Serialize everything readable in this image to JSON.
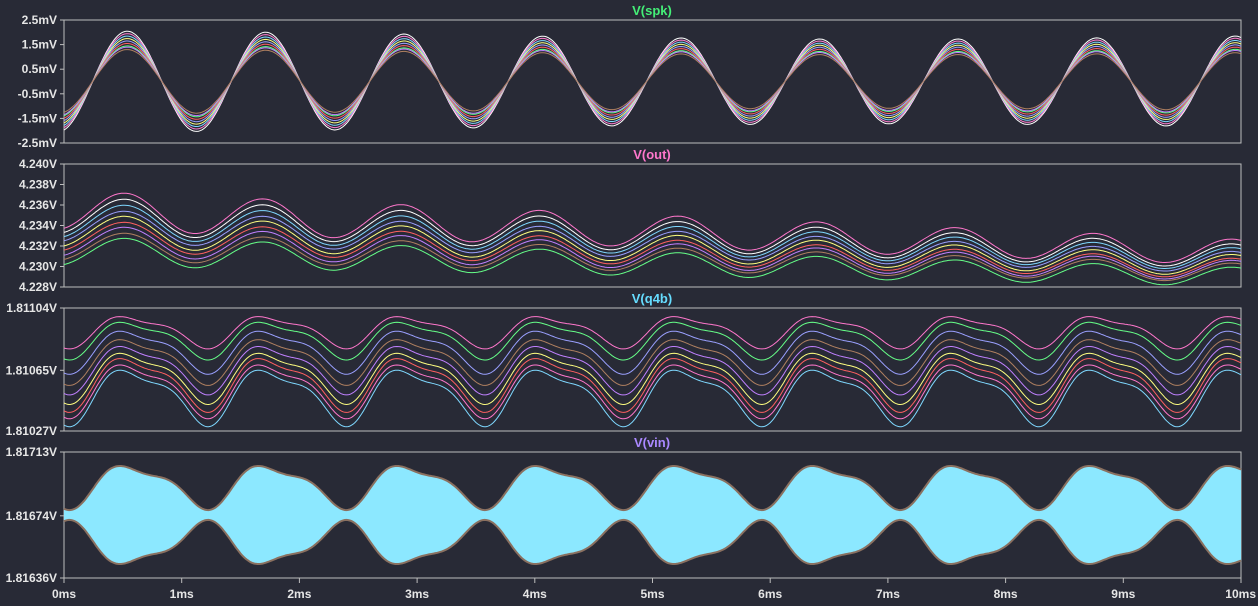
{
  "window": {
    "background": "#282a36",
    "grid": false
  },
  "chart_data": [
    {
      "type": "line",
      "title": "V(spk)",
      "title_color": "#44ee77",
      "y_tick_labels": [
        "2.5mV",
        "1.5mV",
        "0.5mV",
        "-0.5mV",
        "-1.5mV",
        "-2.5mV"
      ],
      "y_ticks": [
        2.5,
        1.5,
        0.5,
        -0.5,
        -1.5,
        -2.5
      ],
      "ylim": [
        -2.5,
        2.5
      ],
      "xlim": [
        0,
        10
      ],
      "frequency_khz": 0.85,
      "series_description": "family of stepped-parameter traces",
      "series_count": 9,
      "series": [
        {
          "color": "#ffffff",
          "amplitude": 2.05,
          "offset": 0
        },
        {
          "color": "#ff7fd0",
          "amplitude": 1.95,
          "offset": 0
        },
        {
          "color": "#7fd8ff",
          "amplitude": 1.85,
          "offset": 0
        },
        {
          "color": "#ffff80",
          "amplitude": 1.75,
          "offset": 0
        },
        {
          "color": "#9aa0ff",
          "amplitude": 1.65,
          "offset": 0
        },
        {
          "color": "#ff6060",
          "amplitude": 1.55,
          "offset": 0
        },
        {
          "color": "#66ff88",
          "amplitude": 1.45,
          "offset": 0
        },
        {
          "color": "#c080ff",
          "amplitude": 1.4,
          "offset": 0
        },
        {
          "color": "#b08060",
          "amplitude": 1.3,
          "offset": 0
        }
      ]
    },
    {
      "type": "line",
      "title": "V(out)",
      "title_color": "#ff77cc",
      "y_tick_labels": [
        "4.240V",
        "4.238V",
        "4.236V",
        "4.234V",
        "4.232V",
        "4.230V",
        "4.228V"
      ],
      "y_ticks": [
        4.24,
        4.238,
        4.236,
        4.234,
        4.232,
        4.23,
        4.228
      ],
      "ylim": [
        4.228,
        4.24
      ],
      "xlim": [
        0,
        10
      ],
      "frequency_khz": 0.85,
      "series": [
        {
          "color": "#ff77cc",
          "start": 4.2355,
          "end": 4.2314,
          "amplitude": 0.0019
        },
        {
          "color": "#ffffff",
          "start": 4.235,
          "end": 4.231,
          "amplitude": 0.0018
        },
        {
          "color": "#7fd8ff",
          "start": 4.2345,
          "end": 4.2307,
          "amplitude": 0.0017
        },
        {
          "color": "#9aa0ff",
          "start": 4.234,
          "end": 4.2304,
          "amplitude": 0.0016
        },
        {
          "color": "#ffff80",
          "start": 4.2335,
          "end": 4.2301,
          "amplitude": 0.0016
        },
        {
          "color": "#ff6060",
          "start": 4.233,
          "end": 4.2298,
          "amplitude": 0.0015
        },
        {
          "color": "#c080ff",
          "start": 4.2325,
          "end": 4.2296,
          "amplitude": 0.0015
        },
        {
          "color": "#b08060",
          "start": 4.232,
          "end": 4.2294,
          "amplitude": 0.0014
        },
        {
          "color": "#66ff88",
          "start": 4.2315,
          "end": 4.229,
          "amplitude": 0.0014
        }
      ]
    },
    {
      "type": "line",
      "title": "V(q4b)",
      "title_color": "#66ddff",
      "y_tick_labels": [
        "1.81104V",
        "1.81065V",
        "1.81027V"
      ],
      "y_ticks": [
        1.81104,
        1.81065,
        1.81027
      ],
      "ylim": [
        1.81027,
        1.81104
      ],
      "xlim": [
        0,
        10
      ],
      "frequency_khz": 0.85,
      "series": [
        {
          "color": "#ff77cc",
          "center": 1.8109,
          "amplitude": 0.00012
        },
        {
          "color": "#66ff88",
          "center": 1.81085,
          "amplitude": 0.00014
        },
        {
          "color": "#9aa0ff",
          "center": 1.81078,
          "amplitude": 0.00016
        },
        {
          "color": "#b08060",
          "center": 1.81072,
          "amplitude": 0.00017
        },
        {
          "color": "#c080ff",
          "center": 1.81067,
          "amplitude": 0.00018
        },
        {
          "color": "#ffff80",
          "center": 1.81062,
          "amplitude": 0.00019
        },
        {
          "color": "#ff6060",
          "center": 1.81058,
          "amplitude": 0.0002
        },
        {
          "color": "#ff77cc",
          "center": 1.81054,
          "amplitude": 0.0002
        },
        {
          "color": "#7fd8ff",
          "center": 1.8105,
          "amplitude": 0.00021
        }
      ]
    },
    {
      "type": "area",
      "title": "V(vin)",
      "title_color": "#aa88ff",
      "y_tick_labels": [
        "1.81713V",
        "1.81674V",
        "1.81636V"
      ],
      "y_ticks": [
        1.81713,
        1.81674,
        1.81636
      ],
      "ylim": [
        1.81636,
        1.81713
      ],
      "xlim": [
        0,
        10
      ],
      "frequency_khz": 0.85,
      "fill_color": "#8ce8ff",
      "envelope": {
        "upper_center": 1.81693,
        "upper_amplitude": 0.00016,
        "lower_center": 1.81656,
        "lower_amplitude": 0.00016
      }
    }
  ],
  "x_axis": {
    "tick_labels": [
      "0ms",
      "1ms",
      "2ms",
      "3ms",
      "4ms",
      "5ms",
      "6ms",
      "7ms",
      "8ms",
      "9ms",
      "10ms"
    ],
    "ticks": [
      0,
      1,
      2,
      3,
      4,
      5,
      6,
      7,
      8,
      9,
      10
    ],
    "unit": "ms"
  }
}
